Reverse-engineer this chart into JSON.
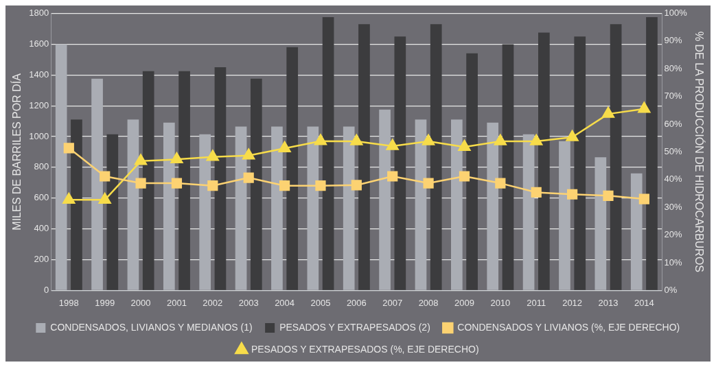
{
  "chart_data": {
    "type": "bar",
    "categories": [
      "1998",
      "1999",
      "2000",
      "2001",
      "2002",
      "2003",
      "2004",
      "2005",
      "2006",
      "2007",
      "2008",
      "2009",
      "2010",
      "2011",
      "2012",
      "2013",
      "2014"
    ],
    "ylabel": "MILES DE BARRILES POR DÍA",
    "y2label": "% DE LA PRODUCCIÓN DE HIDROCARBUROS",
    "ylim": [
      0,
      1800
    ],
    "yticks": [
      0,
      200,
      400,
      600,
      800,
      1000,
      1200,
      1400,
      1600,
      1800
    ],
    "y2lim": [
      0,
      100
    ],
    "y2ticks": [
      {
        "value": 0,
        "label": "0%"
      },
      {
        "value": 10,
        "label": "10%"
      },
      {
        "value": 20,
        "label": "20%"
      },
      {
        "value": 30,
        "label": "30%"
      },
      {
        "value": 40,
        "label": "40%"
      },
      {
        "value": 50,
        "label": "50%"
      },
      {
        "value": 60,
        "label": "60%"
      },
      {
        "value": 70,
        "label": "70%"
      },
      {
        "value": 80,
        "label": "80%"
      },
      {
        "value": 90,
        "label": "90%"
      },
      {
        "value": 100,
        "label": "100%"
      }
    ],
    "grid": "y",
    "legend": "bottom",
    "series": [
      {
        "name": "CONDENSADOS, LIVIANOS Y MEDIANOS (1)",
        "color": "#aaadb4",
        "values": [
          1600,
          1375,
          1110,
          1090,
          1015,
          1065,
          1065,
          1065,
          1065,
          1175,
          1110,
          1110,
          1090,
          1015,
          970,
          865,
          760
        ]
      },
      {
        "name": "PESADOS Y EXTRAPESADOS (2)",
        "color": "#3c3c3e",
        "values": [
          1110,
          1015,
          1425,
          1425,
          1450,
          1375,
          1580,
          1775,
          1730,
          1650,
          1730,
          1540,
          1600,
          1675,
          1650,
          1730,
          1775
        ]
      },
      {
        "name": "CONDENSADOS Y LIVIANOS (%, EJE DERECHO)",
        "type": "line",
        "axis": "y2",
        "marker": "square",
        "color": "#fcd272",
        "values": [
          51.4,
          41.2,
          38.7,
          38.7,
          37.8,
          40.7,
          37.8,
          37.8,
          38.0,
          41.2,
          38.7,
          41.2,
          38.7,
          35.4,
          34.7,
          34.2,
          33.0
        ]
      },
      {
        "name": "PESADOS Y EXTRAPESADOS (%, EJE DERECHO)",
        "type": "line",
        "axis": "y2",
        "marker": "triangle",
        "color": "#f7dc4a",
        "values": [
          32.7,
          32.7,
          46.7,
          47.3,
          48.2,
          48.7,
          51.3,
          53.9,
          53.8,
          52.1,
          53.8,
          51.8,
          53.8,
          53.8,
          55.3,
          63.7,
          65.5
        ]
      }
    ]
  }
}
